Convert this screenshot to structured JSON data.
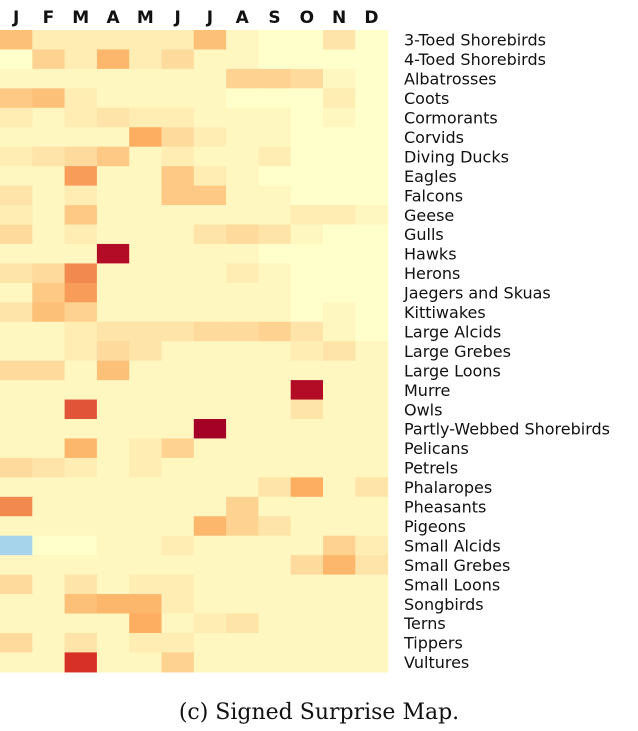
{
  "caption": "(c) Signed Surprise Map.",
  "chart_data": {
    "type": "heatmap",
    "title": "",
    "xlabel": "",
    "ylabel": "",
    "columns": [
      "J",
      "F",
      "M",
      "A",
      "M",
      "J",
      "J",
      "A",
      "S",
      "O",
      "N",
      "D"
    ],
    "rows": [
      "3-Toed Shorebirds",
      "4-Toed Shorebirds",
      "Albatrosses",
      "Coots",
      "Cormorants",
      "Corvids",
      "Diving Ducks",
      "Eagles",
      "Falcons",
      "Geese",
      "Gulls",
      "Hawks",
      "Herons",
      "Jaegers and Skuas",
      "Kittiwakes",
      "Large Alcids",
      "Large Grebes",
      "Large Loons",
      "Murre",
      "Owls",
      "Partly-Webbed Shorebirds",
      "Pelicans",
      "Petrels",
      "Phalaropes",
      "Pheasants",
      "Pigeons",
      "Small Alcids",
      "Small Grebes",
      "Small Loons",
      "Songbirds",
      "Terns",
      "Tippers",
      "Vultures"
    ],
    "value_range": [
      -1,
      1
    ],
    "color_scale": {
      "negative": "#a6d4ea",
      "zero": "#ffffcc",
      "positive": "#a50026"
    },
    "values": [
      [
        0.35,
        0.1,
        0.1,
        0.1,
        0.1,
        0.1,
        0.35,
        0.05,
        0.0,
        0.0,
        0.15,
        0.0
      ],
      [
        0.0,
        0.25,
        0.1,
        0.4,
        0.1,
        0.2,
        0.05,
        0.05,
        0.0,
        0.0,
        0.0,
        0.0
      ],
      [
        0.05,
        0.05,
        0.05,
        0.05,
        0.05,
        0.05,
        0.05,
        0.25,
        0.25,
        0.2,
        0.05,
        0.0
      ],
      [
        0.3,
        0.35,
        0.1,
        0.05,
        0.05,
        0.05,
        0.05,
        0.0,
        0.0,
        0.0,
        0.1,
        0.0
      ],
      [
        0.1,
        0.05,
        0.1,
        0.15,
        0.1,
        0.1,
        0.05,
        0.05,
        0.05,
        0.0,
        0.05,
        0.0
      ],
      [
        0.05,
        0.05,
        0.05,
        0.05,
        0.45,
        0.2,
        0.1,
        0.05,
        0.05,
        0.0,
        0.0,
        0.0
      ],
      [
        0.1,
        0.15,
        0.2,
        0.3,
        0.05,
        0.1,
        0.05,
        0.05,
        0.1,
        0.0,
        0.0,
        0.0
      ],
      [
        0.05,
        0.05,
        0.5,
        0.05,
        0.05,
        0.3,
        0.1,
        0.05,
        0.0,
        0.0,
        0.0,
        0.0
      ],
      [
        0.15,
        0.05,
        0.1,
        0.05,
        0.05,
        0.3,
        0.3,
        0.05,
        0.05,
        0.0,
        0.0,
        0.0
      ],
      [
        0.1,
        0.05,
        0.3,
        0.05,
        0.05,
        0.05,
        0.05,
        0.05,
        0.05,
        0.1,
        0.1,
        0.05
      ],
      [
        0.2,
        0.05,
        0.1,
        0.05,
        0.05,
        0.05,
        0.15,
        0.2,
        0.15,
        0.05,
        0.0,
        0.0
      ],
      [
        0.05,
        0.05,
        0.05,
        0.95,
        0.05,
        0.05,
        0.05,
        0.05,
        0.0,
        0.0,
        0.0,
        0.0
      ],
      [
        0.15,
        0.2,
        0.55,
        0.05,
        0.05,
        0.05,
        0.05,
        0.1,
        0.05,
        0.0,
        0.0,
        0.0
      ],
      [
        0.05,
        0.3,
        0.5,
        0.05,
        0.05,
        0.05,
        0.05,
        0.05,
        0.05,
        0.0,
        0.0,
        0.0
      ],
      [
        0.15,
        0.35,
        0.25,
        0.05,
        0.05,
        0.05,
        0.05,
        0.05,
        0.05,
        0.0,
        0.05,
        0.0
      ],
      [
        0.05,
        0.05,
        0.1,
        0.15,
        0.15,
        0.15,
        0.2,
        0.2,
        0.25,
        0.15,
        0.05,
        0.0
      ],
      [
        0.05,
        0.05,
        0.1,
        0.2,
        0.15,
        0.05,
        0.05,
        0.05,
        0.05,
        0.1,
        0.15,
        0.05
      ],
      [
        0.2,
        0.2,
        0.05,
        0.35,
        0.05,
        0.05,
        0.05,
        0.05,
        0.05,
        0.05,
        0.05,
        0.05
      ],
      [
        0.05,
        0.05,
        0.05,
        0.05,
        0.05,
        0.05,
        0.05,
        0.05,
        0.05,
        0.95,
        0.05,
        0.05
      ],
      [
        0.05,
        0.05,
        0.7,
        0.05,
        0.05,
        0.05,
        0.05,
        0.05,
        0.05,
        0.15,
        0.05,
        0.05
      ],
      [
        0.05,
        0.05,
        0.05,
        0.05,
        0.05,
        0.05,
        1.0,
        0.05,
        0.05,
        0.05,
        0.05,
        0.05
      ],
      [
        0.05,
        0.05,
        0.4,
        0.05,
        0.1,
        0.25,
        0.05,
        0.05,
        0.05,
        0.05,
        0.05,
        0.05
      ],
      [
        0.2,
        0.15,
        0.1,
        0.05,
        0.1,
        0.05,
        0.05,
        0.05,
        0.05,
        0.05,
        0.05,
        0.05
      ],
      [
        0.05,
        0.05,
        0.05,
        0.05,
        0.05,
        0.05,
        0.05,
        0.05,
        0.15,
        0.45,
        0.05,
        0.15
      ],
      [
        0.55,
        0.05,
        0.05,
        0.05,
        0.05,
        0.05,
        0.05,
        0.25,
        0.05,
        0.05,
        0.05,
        0.05
      ],
      [
        0.05,
        0.05,
        0.05,
        0.05,
        0.05,
        0.05,
        0.4,
        0.25,
        0.15,
        0.05,
        0.05,
        0.05
      ],
      [
        -0.4,
        0.0,
        0.0,
        0.05,
        0.05,
        0.1,
        0.05,
        0.05,
        0.05,
        0.05,
        0.25,
        0.1
      ],
      [
        0.05,
        0.05,
        0.05,
        0.05,
        0.05,
        0.05,
        0.05,
        0.05,
        0.05,
        0.2,
        0.4,
        0.15
      ],
      [
        0.2,
        0.05,
        0.15,
        0.05,
        0.1,
        0.1,
        0.05,
        0.05,
        0.05,
        0.05,
        0.05,
        0.05
      ],
      [
        0.05,
        0.05,
        0.35,
        0.4,
        0.4,
        0.1,
        0.05,
        0.05,
        0.05,
        0.05,
        0.05,
        0.05
      ],
      [
        0.05,
        0.05,
        0.05,
        0.05,
        0.45,
        0.05,
        0.1,
        0.15,
        0.05,
        0.05,
        0.05,
        0.05
      ],
      [
        0.2,
        0.05,
        0.15,
        0.05,
        0.1,
        0.1,
        0.05,
        0.05,
        0.05,
        0.05,
        0.05,
        0.05
      ],
      [
        0.05,
        0.05,
        0.8,
        0.05,
        0.05,
        0.25,
        0.05,
        0.05,
        0.05,
        0.05,
        0.05,
        0.05
      ]
    ]
  }
}
